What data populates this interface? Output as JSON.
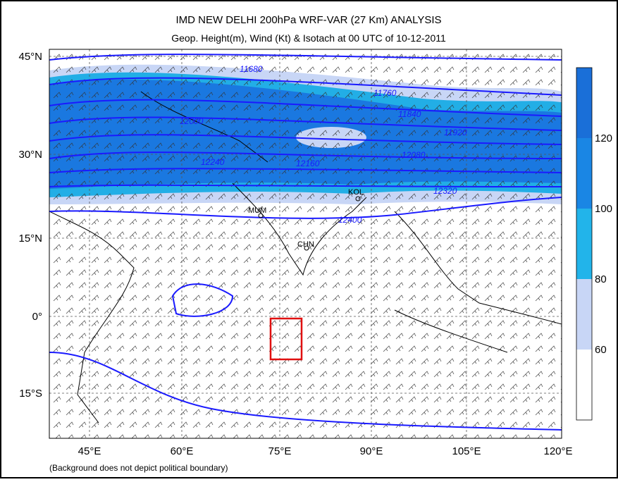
{
  "header": {
    "title": "IMD NEW DELHI 200hPa WRF-VAR (27 Km) ANALYSIS",
    "subtitle": "Geop. Height(m), Wind (Kt) & Isotach  at 00 UTC of 10-12-2011"
  },
  "lat_labels": [
    "45°N",
    "30°N",
    "15°N",
    "0°",
    "15°S"
  ],
  "lon_labels": [
    "45°E",
    "60°E",
    "75°E",
    "90°E",
    "105°E",
    "120°E"
  ],
  "contour_labels": [
    "11680",
    "11760",
    "11840",
    "11920",
    "12000",
    "12080",
    "12160",
    "12240",
    "12320",
    "12400"
  ],
  "stations": [
    "MUM",
    "CHN",
    "KOL"
  ],
  "colorbar": {
    "ticks": [
      "120",
      "100",
      "80",
      "60"
    ]
  },
  "footnote": "(Background does not depict political boundary)"
}
